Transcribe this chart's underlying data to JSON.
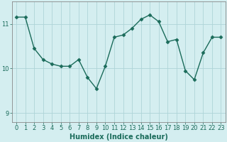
{
  "x": [
    0,
    1,
    2,
    3,
    4,
    5,
    6,
    7,
    8,
    9,
    10,
    11,
    12,
    13,
    14,
    15,
    16,
    17,
    18,
    19,
    20,
    21,
    22,
    23
  ],
  "y": [
    11.15,
    11.15,
    10.45,
    10.2,
    10.1,
    10.05,
    10.05,
    10.2,
    9.8,
    9.55,
    10.05,
    10.7,
    10.75,
    10.9,
    11.1,
    11.2,
    11.05,
    10.6,
    10.65,
    9.95,
    9.75,
    10.35,
    10.7,
    10.7
  ],
  "line_color": "#1a6b5a",
  "marker": "D",
  "markersize": 2.5,
  "linewidth": 1.0,
  "xlabel": "Humidex (Indice chaleur)",
  "xlabel_fontsize": 7,
  "ylabel": "",
  "ylim": [
    8.8,
    11.5
  ],
  "xlim": [
    -0.5,
    23.5
  ],
  "yticks": [
    9,
    10,
    11
  ],
  "ytick_labels": [
    "9",
    "10",
    "11"
  ],
  "xticks": [
    0,
    1,
    2,
    3,
    4,
    5,
    6,
    7,
    8,
    9,
    10,
    11,
    12,
    13,
    14,
    15,
    16,
    17,
    18,
    19,
    20,
    21,
    22,
    23
  ],
  "background_color": "#d4eef0",
  "grid_color": "#aed4d8",
  "tick_color": "#1a6b5a",
  "tick_fontsize": 6,
  "spine_color": "#888888",
  "title": ""
}
